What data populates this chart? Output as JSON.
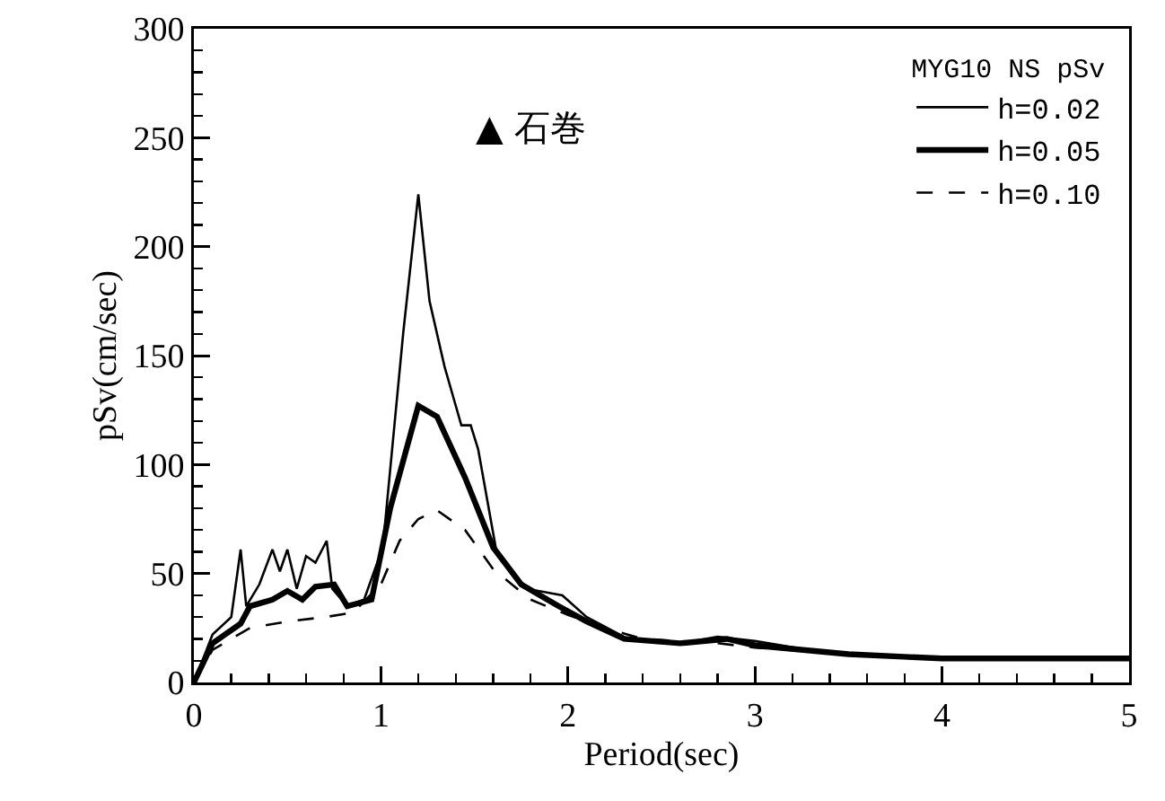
{
  "chart_data": {
    "type": "line",
    "xlabel": "Period(sec)",
    "ylabel": "pSv(cm/sec)",
    "legend_title": "MYG10 NS pSv",
    "annotations": [
      "▲ 石巻"
    ],
    "xlim": [
      0,
      5
    ],
    "xticks": [
      0,
      1,
      2,
      3,
      4,
      5
    ],
    "ylim": [
      0,
      300
    ],
    "yticks": [
      0,
      50,
      100,
      150,
      200,
      250,
      300
    ],
    "grid": false,
    "legend": "top right",
    "marker": "none",
    "series": [
      {
        "name": "h=0.02",
        "color": "#000000",
        "line_style": "solid",
        "x": [
          0,
          0.1,
          0.2,
          0.25,
          0.28,
          0.35,
          0.42,
          0.46,
          0.5,
          0.55,
          0.6,
          0.65,
          0.71,
          0.74,
          0.82,
          0.91,
          1.01,
          1.12,
          1.2,
          1.26,
          1.34,
          1.43,
          1.48,
          1.52,
          1.62,
          1.78,
          1.97,
          2.1,
          2.32,
          2.61,
          2.8,
          3.0,
          3.28,
          3.83,
          4.5,
          5
        ],
        "values": [
          0,
          22,
          30,
          61,
          35,
          45,
          61,
          51,
          61,
          43,
          58,
          55,
          65,
          43,
          35,
          38,
          62,
          161,
          224,
          175,
          145,
          118,
          118,
          107,
          59,
          43,
          40,
          30,
          20,
          18,
          21,
          19,
          15,
          11,
          11,
          11
        ]
      },
      {
        "name": "h=0.05",
        "color": "#000000",
        "line_style": "solid",
        "x": [
          0,
          0.1,
          0.25,
          0.3,
          0.42,
          0.5,
          0.58,
          0.65,
          0.75,
          0.82,
          0.95,
          1.05,
          1.2,
          1.3,
          1.45,
          1.6,
          1.75,
          1.95,
          2.1,
          2.3,
          2.6,
          2.85,
          3.0,
          3.5,
          4.0,
          5
        ],
        "values": [
          0,
          18,
          27,
          35,
          38,
          42,
          38,
          44,
          45,
          35,
          38,
          80,
          127,
          122,
          94,
          62,
          45,
          35,
          28,
          20,
          18,
          20,
          17,
          13,
          11,
          11
        ]
      },
      {
        "name": "h=0.10",
        "color": "#000000",
        "line_style": "dashed",
        "x": [
          0,
          0.1,
          0.3,
          0.5,
          0.7,
          0.85,
          1.0,
          1.1,
          1.2,
          1.3,
          1.45,
          1.6,
          1.8,
          2.0,
          2.2,
          2.4,
          2.8,
          3.0,
          3.5,
          4.0,
          5
        ],
        "values": [
          0,
          15,
          25,
          28,
          30,
          32,
          45,
          65,
          75,
          79,
          70,
          52,
          38,
          31,
          25,
          20,
          18,
          16,
          13,
          11,
          11
        ]
      }
    ]
  }
}
